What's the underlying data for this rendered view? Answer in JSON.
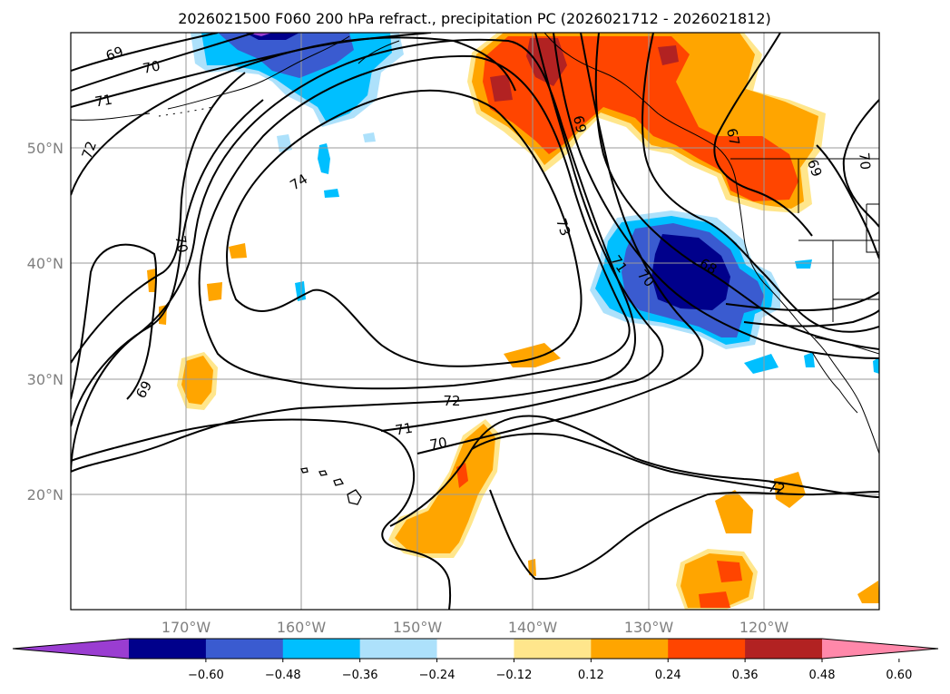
{
  "title": "2026021500 F060 200 hPa refract., precipitation PC (2026021712 - 2026021812)",
  "lat_labels": [
    "50°N",
    "40°N",
    "30°N",
    "20°N"
  ],
  "lon_labels": [
    "170°W",
    "160°W",
    "150°W",
    "140°W",
    "130°W",
    "120°W"
  ],
  "contour_labels": [
    "69",
    "70",
    "71",
    "72",
    "74",
    "70",
    "69",
    "73",
    "71",
    "70",
    "69",
    "67",
    "69",
    "70",
    "72",
    "71",
    "70",
    "72",
    "68"
  ],
  "colorbar": {
    "ticks": [
      "−0.60",
      "−0.48",
      "−0.36",
      "−0.24",
      "−0.12",
      "0.12",
      "0.24",
      "0.36",
      "0.48",
      "0.60"
    ],
    "colors": [
      "#9a3dd1",
      "#00008b",
      "#3a5bd0",
      "#00bfff",
      "#ade1fb",
      "#ffffff",
      "#ffe68c",
      "#ffa500",
      "#ff4500",
      "#b22222",
      "#ff88aa"
    ]
  }
}
